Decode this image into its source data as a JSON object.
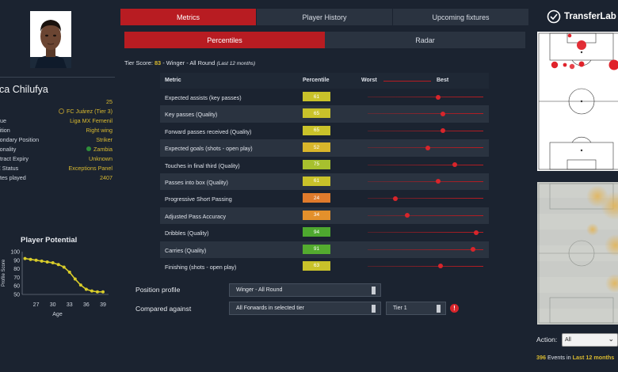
{
  "colors": {
    "accent": "#b81c22",
    "gold": "#d8b92f",
    "bg": "#1b2330",
    "panel": "#2a3340"
  },
  "player": {
    "name": "isca Chilufya",
    "info": [
      {
        "key": "e",
        "value": "25"
      },
      {
        "key": "b",
        "value": "FC Juárez (Tier 3)",
        "icon": "club-crest-icon"
      },
      {
        "key": "gue",
        "value": "Liga MX Femenil"
      },
      {
        "key": "sition",
        "value": "Right wing"
      },
      {
        "key": "condary Position",
        "value": "Striker"
      },
      {
        "key": "tionality",
        "value": "Zambia",
        "icon": "zambia-flag-icon"
      },
      {
        "key": "ntract Expiry",
        "value": "Unknown"
      },
      {
        "key": "E Status",
        "value": "Exceptions Panel"
      },
      {
        "key": "utes played",
        "value": "2407"
      }
    ]
  },
  "tabs": [
    {
      "label": "Metrics",
      "active": true
    },
    {
      "label": "Player History",
      "active": false
    },
    {
      "label": "Upcoming fixtures",
      "active": false
    }
  ],
  "subtabs": [
    {
      "label": "Percentiles",
      "active": true
    },
    {
      "label": "Radar",
      "active": false
    }
  ],
  "tier": {
    "prefix": "Tier Score:",
    "score": "83",
    "separator": "-",
    "profile": "Winger - All Round",
    "note": "(Last 12 months)"
  },
  "table": {
    "headers": {
      "metric": "Metric",
      "percentile": "Percentile",
      "worst": "Worst",
      "best": "Best"
    },
    "rows": [
      {
        "metric": "Expected assists (key passes)",
        "percentile": 61,
        "color": "#c9c22a"
      },
      {
        "metric": "Key passes (Quality)",
        "percentile": 65,
        "color": "#c9c22a"
      },
      {
        "metric": "Forward passes received (Quality)",
        "percentile": 65,
        "color": "#c9c22a"
      },
      {
        "metric": "Expected goals (shots - open play)",
        "percentile": 52,
        "color": "#d9b62b"
      },
      {
        "metric": "Touches in final third (Quality)",
        "percentile": 75,
        "color": "#a7c02e"
      },
      {
        "metric": "Passes into box (Quality)",
        "percentile": 61,
        "color": "#c9c22a"
      },
      {
        "metric": "Progressive Short Passing",
        "percentile": 24,
        "color": "#e07b2c"
      },
      {
        "metric": "Adjusted Pass Accuracy",
        "percentile": 34,
        "color": "#e3902b"
      },
      {
        "metric": "Dribbles (Quality)",
        "percentile": 94,
        "color": "#4ea82f"
      },
      {
        "metric": "Carries (Quality)",
        "percentile": 91,
        "color": "#54ab2f"
      },
      {
        "metric": "Finishing (shots - open play)",
        "percentile": 63,
        "color": "#c9c22a"
      }
    ]
  },
  "form": {
    "position_profile_label": "Position profile",
    "position_profile_value": "Winger - All Round",
    "compared_against_label": "Compared against",
    "compared_against_value": "All Forwards in selected tier",
    "tier_value": "Tier 1",
    "info_icon": "!"
  },
  "potential": {
    "title": "Player Potential",
    "ylabel": "Profile Score",
    "xlabel": "Age"
  },
  "chart_data": {
    "type": "line",
    "title": "Player Potential",
    "xlabel": "Age",
    "ylabel": "Profile Score",
    "xlim": [
      24.5,
      40
    ],
    "ylim": [
      50,
      100
    ],
    "xticks": [
      27,
      30,
      33,
      36,
      39
    ],
    "yticks": [
      50,
      60,
      70,
      80,
      90,
      100
    ],
    "x": [
      25,
      26,
      27,
      28,
      29,
      30,
      31,
      32,
      33,
      34,
      35,
      36,
      37,
      38,
      39
    ],
    "values": [
      92,
      91,
      90,
      89,
      88,
      87,
      85,
      82,
      76,
      68,
      61,
      56,
      54,
      53,
      53
    ],
    "color": "#d8cc2a"
  },
  "brand": {
    "name": "TransferLab"
  },
  "action": {
    "label": "Action:",
    "value": "All",
    "events_count": "396",
    "events_text": "Events in",
    "events_period": "Last 12 months"
  }
}
